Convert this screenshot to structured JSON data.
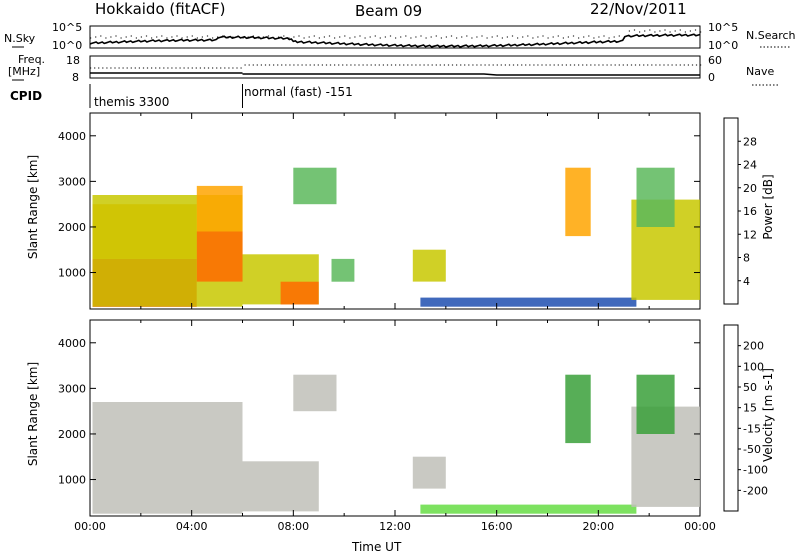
{
  "header": {
    "radar": "Hokkaido (fitACF)",
    "beam": "Beam 09",
    "date": "22/Nov/2011"
  },
  "summary": {
    "nsky_label": "N.Sky",
    "nsearch_label": "N.Search",
    "exp_top_label": "10^5",
    "exp_bottom_label": "10^0",
    "freq_label_top": "Freq.",
    "freq_label_bottom": "[MHz]",
    "freq_ticks": [
      "18",
      "8"
    ],
    "nave_label": "Nave",
    "nave_ticks": [
      "60",
      "0"
    ],
    "cpid_label": "CPID",
    "cpid_segments": [
      {
        "name": "themis 3300",
        "start_hour": 0,
        "end_hour": 6
      },
      {
        "name": "normal (fast) -151",
        "start_hour": 6,
        "end_hour": 24
      }
    ]
  },
  "chart_data": [
    {
      "type": "heatmap",
      "panel": "power",
      "xlabel": "",
      "ylabel": "Slant Range [km]",
      "xlim_hours": [
        0,
        24
      ],
      "ylim": [
        200,
        4500
      ],
      "y_ticks": [
        "1000",
        "2000",
        "3000",
        "4000"
      ],
      "colorbar_label": "Power [dB]",
      "colorbar_ticks": [
        "4",
        "8",
        "12",
        "16",
        "20",
        "24",
        "28"
      ],
      "colorbar_colors": [
        "#0000ff",
        "#1f4fb0",
        "#2e8b57",
        "#5cb85c",
        "#c8c800",
        "#ffa500",
        "#ff6a00",
        "#ff0000"
      ],
      "regions": [
        {
          "t0": 0.1,
          "t1": 4.2,
          "r0": 250,
          "r1": 1300,
          "level": 0.95
        },
        {
          "t0": 0.1,
          "t1": 4.2,
          "r0": 1300,
          "r1": 2500,
          "level": 0.75
        },
        {
          "t0": 0.1,
          "t1": 6.0,
          "r0": 250,
          "r1": 2700,
          "level": 0.55
        },
        {
          "t0": 4.2,
          "t1": 6.0,
          "r0": 800,
          "r1": 1900,
          "level": 0.85
        },
        {
          "t0": 4.2,
          "t1": 6.0,
          "r0": 1900,
          "r1": 2900,
          "level": 0.65
        },
        {
          "t0": 6.0,
          "t1": 9.0,
          "r0": 300,
          "r1": 1400,
          "level": 0.55
        },
        {
          "t0": 7.5,
          "t1": 9.0,
          "r0": 300,
          "r1": 800,
          "level": 0.8
        },
        {
          "t0": 8.0,
          "t1": 9.7,
          "r0": 2500,
          "r1": 3300,
          "level": 0.45
        },
        {
          "t0": 9.5,
          "t1": 10.4,
          "r0": 800,
          "r1": 1300,
          "level": 0.45
        },
        {
          "t0": 12.7,
          "t1": 14.0,
          "r0": 800,
          "r1": 1500,
          "level": 0.6
        },
        {
          "t0": 13.0,
          "t1": 21.5,
          "r0": 250,
          "r1": 450,
          "level": 0.2
        },
        {
          "t0": 18.7,
          "t1": 19.7,
          "r0": 1800,
          "r1": 3300,
          "level": 0.75
        },
        {
          "t0": 21.3,
          "t1": 24.0,
          "r0": 400,
          "r1": 2600,
          "level": 0.6
        },
        {
          "t0": 21.5,
          "t1": 23.0,
          "r0": 2000,
          "r1": 3300,
          "level": 0.45
        }
      ]
    },
    {
      "type": "heatmap",
      "panel": "velocity",
      "xlabel": "Time UT",
      "ylabel": "Slant Range [km]",
      "xlim_hours": [
        0,
        24
      ],
      "ylim": [
        200,
        4500
      ],
      "y_ticks": [
        "1000",
        "2000",
        "3000",
        "4000"
      ],
      "x_ticks": [
        "00:00",
        "04:00",
        "08:00",
        "12:00",
        "16:00",
        "20:00",
        "00:00"
      ],
      "colorbar_label": "Velocity [m s-1]",
      "colorbar_ticks": [
        "200",
        "100",
        "50",
        "15",
        "-15",
        "-50",
        "-100",
        "-200"
      ],
      "colorbar_colors": [
        "#2030c0",
        "#2e6b3e",
        "#3aa03a",
        "#66dd44",
        "#c0c0b8",
        "#ffd27a",
        "#ffa500",
        "#ff5a00",
        "#e00000"
      ],
      "regions": [
        {
          "t0": 0.1,
          "t1": 6.0,
          "r0": 250,
          "r1": 2700,
          "level": 0.5
        },
        {
          "t0": 6.0,
          "t1": 9.0,
          "r0": 300,
          "r1": 1400,
          "level": 0.5
        },
        {
          "t0": 8.0,
          "t1": 9.7,
          "r0": 2500,
          "r1": 3300,
          "level": 0.5
        },
        {
          "t0": 12.7,
          "t1": 14.0,
          "r0": 800,
          "r1": 1500,
          "level": 0.5
        },
        {
          "t0": 13.0,
          "t1": 21.5,
          "r0": 250,
          "r1": 450,
          "level": 0.35
        },
        {
          "t0": 18.7,
          "t1": 19.7,
          "r0": 1800,
          "r1": 3300,
          "level": 0.3
        },
        {
          "t0": 21.3,
          "t1": 24.0,
          "r0": 400,
          "r1": 2600,
          "level": 0.5
        },
        {
          "t0": 21.5,
          "t1": 23.0,
          "r0": 2000,
          "r1": 3300,
          "level": 0.3
        }
      ]
    }
  ]
}
